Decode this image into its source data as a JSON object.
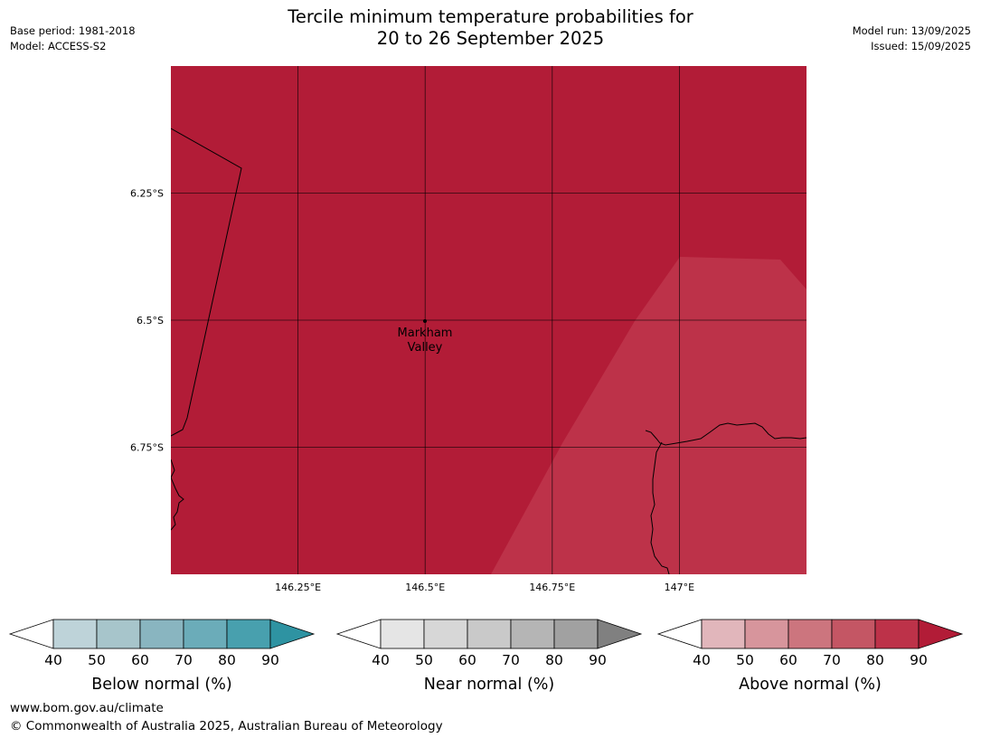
{
  "header": {
    "title_line1": "Tercile minimum temperature probabilities for",
    "title_line2": "20 to 26 September 2025",
    "base_period": "Base period: 1981-2018",
    "model": "Model: ACCESS-S2",
    "model_run": "Model run: 13/09/2025",
    "issued": "Issued: 15/09/2025"
  },
  "map": {
    "lon_ticks": [
      "146.25°E",
      "146.5°E",
      "146.75°E",
      "147°E"
    ],
    "lat_ticks": [
      "6.25°S",
      "6.5°S",
      "6.75°S"
    ],
    "lon_range": [
      146.0,
      147.25
    ],
    "lat_range": [
      -6.0,
      -7.0
    ],
    "location": {
      "name_line1": "Markham",
      "name_line2": "Valley",
      "lon": 146.5,
      "lat": -6.5
    },
    "fill_main": "#b21c37",
    "fill_lower": "#bd3249"
  },
  "colorbars": [
    {
      "title": "Below normal (%)",
      "ticks": [
        "40",
        "50",
        "60",
        "70",
        "80",
        "90"
      ],
      "colors": [
        "#bed3d9",
        "#a7c5cb",
        "#89b5c0",
        "#6bacb9",
        "#48a0ae"
      ],
      "over_color": "#2e93a2"
    },
    {
      "title": "Near normal (%)",
      "ticks": [
        "40",
        "50",
        "60",
        "70",
        "80",
        "90"
      ],
      "colors": [
        "#e5e5e5",
        "#d7d7d7",
        "#c9c9c9",
        "#b5b5b5",
        "#a1a1a1"
      ],
      "over_color": "#808080"
    },
    {
      "title": "Above normal (%)",
      "ticks": [
        "40",
        "50",
        "60",
        "70",
        "80",
        "90"
      ],
      "colors": [
        "#e1b6bb",
        "#d7959c",
        "#cc757e",
        "#c45664",
        "#bd3249"
      ],
      "over_color": "#b21c37"
    }
  ],
  "footer": {
    "url": "www.bom.gov.au/climate",
    "copyright": "© Commonwealth of Australia 2025, Australian Bureau of Meteorology"
  }
}
